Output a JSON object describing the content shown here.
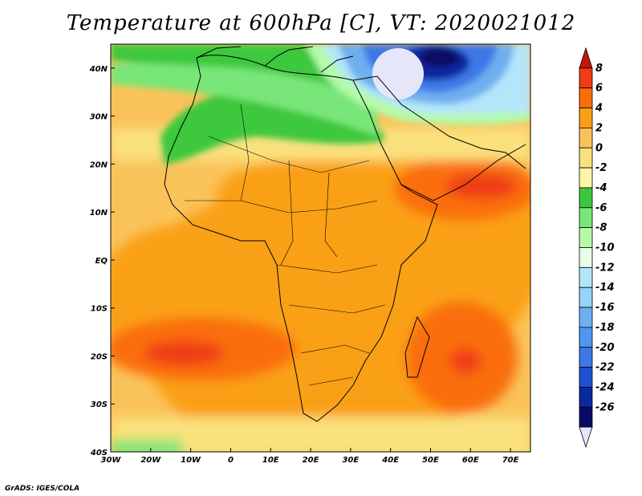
{
  "title": "Temperature at 600hPa [C], VT: 2020021012",
  "credit": "GrADS: IGES/COLA",
  "map": {
    "lon_range": [
      -30,
      75
    ],
    "lat_range": [
      -40,
      45
    ],
    "lon_ticks": [
      {
        "value": -30,
        "label": "30W"
      },
      {
        "value": -20,
        "label": "20W"
      },
      {
        "value": -10,
        "label": "10W"
      },
      {
        "value": 0,
        "label": "0"
      },
      {
        "value": 10,
        "label": "10E"
      },
      {
        "value": 20,
        "label": "20E"
      },
      {
        "value": 30,
        "label": "30E"
      },
      {
        "value": 40,
        "label": "40E"
      },
      {
        "value": 50,
        "label": "50E"
      },
      {
        "value": 60,
        "label": "60E"
      },
      {
        "value": 70,
        "label": "70E"
      }
    ],
    "lat_ticks": [
      {
        "value": 40,
        "label": "40N"
      },
      {
        "value": 30,
        "label": "30N"
      },
      {
        "value": 20,
        "label": "20N"
      },
      {
        "value": 10,
        "label": "10N"
      },
      {
        "value": 0,
        "label": "EQ"
      },
      {
        "value": -10,
        "label": "10S"
      },
      {
        "value": -20,
        "label": "20S"
      },
      {
        "value": -30,
        "label": "30S"
      },
      {
        "value": -40,
        "label": "40S"
      }
    ]
  },
  "colorbar": {
    "labels": [
      "8",
      "6",
      "4",
      "2",
      "0",
      "-2",
      "-4",
      "-6",
      "-8",
      "-10",
      "-12",
      "-14",
      "-16",
      "-18",
      "-20",
      "-22",
      "-24",
      "-26"
    ],
    "colors": [
      "#c8140a",
      "#f03c14",
      "#fa6e0a",
      "#faa014",
      "#fac35a",
      "#fae17d",
      "#fff5aa",
      "#3cc83c",
      "#78e678",
      "#b4faaa",
      "#e6ffe6",
      "#b4e6fa",
      "#96d2fa",
      "#6eaff0",
      "#5096f0",
      "#3c78e6",
      "#1e50d2",
      "#0a28a0",
      "#0a0a64",
      "#e6e6fa"
    ]
  }
}
